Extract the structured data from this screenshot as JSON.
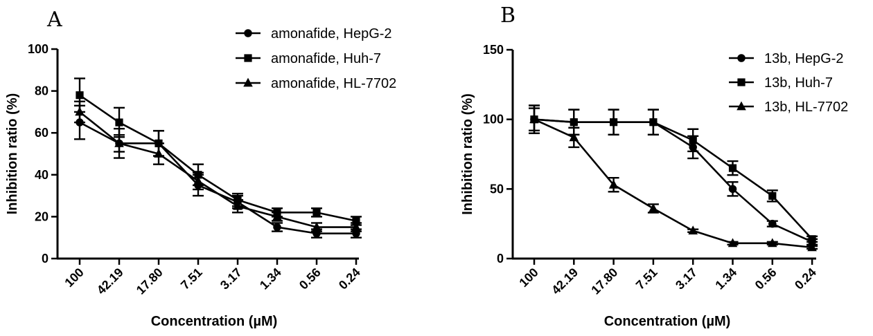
{
  "chart_data": [
    {
      "type": "line",
      "panel_label": "A",
      "xlabel": "Concentration (µM)",
      "ylabel": "Inhibition ratio (%)",
      "categories": [
        "100",
        "42.19",
        "17.80",
        "7.51",
        "3.17",
        "1.34",
        "0.56",
        "0.24"
      ],
      "ylim": [
        0,
        100
      ],
      "yticks": [
        "0",
        "20",
        "40",
        "60",
        "80",
        "100"
      ],
      "grid": false,
      "legend_position": "top-right",
      "series": [
        {
          "name": "amonafide, HepG-2",
          "marker": "circle",
          "values": [
            65,
            55,
            55,
            35,
            27,
            15,
            12,
            12
          ],
          "errors": [
            8,
            7,
            6,
            5,
            3,
            2,
            2,
            2
          ]
        },
        {
          "name": "amonafide, Huh-7",
          "marker": "square",
          "values": [
            78,
            65,
            55,
            40,
            28,
            22,
            22,
            18
          ],
          "errors": [
            8,
            7,
            6,
            5,
            3,
            2,
            2,
            2
          ]
        },
        {
          "name": "amonafide, HL-7702",
          "marker": "triangle",
          "values": [
            70,
            55,
            50,
            37,
            25,
            20,
            15,
            15
          ],
          "errors": [
            5,
            4,
            5,
            4,
            3,
            2,
            2,
            2
          ]
        }
      ]
    },
    {
      "type": "line",
      "panel_label": "B",
      "xlabel": "Concentration (µM)",
      "ylabel": "Inhibition ratio (%)",
      "categories": [
        "100",
        "42.19",
        "17.80",
        "7.51",
        "3.17",
        "1.34",
        "0.56",
        "0.24"
      ],
      "ylim": [
        0,
        150
      ],
      "yticks": [
        "0",
        "50",
        "100",
        "150"
      ],
      "grid": false,
      "legend_position": "top-right",
      "series": [
        {
          "name": "13b, HepG-2",
          "marker": "circle",
          "values": [
            100,
            98,
            98,
            98,
            80,
            50,
            25,
            12
          ],
          "errors": [
            10,
            9,
            9,
            9,
            8,
            5,
            2,
            2
          ]
        },
        {
          "name": "13b, Huh-7",
          "marker": "square",
          "values": [
            100,
            98,
            98,
            98,
            85,
            65,
            45,
            14
          ],
          "errors": [
            10,
            9,
            9,
            9,
            8,
            5,
            4,
            2
          ]
        },
        {
          "name": "13b, HL-7702",
          "marker": "triangle",
          "values": [
            100,
            87,
            53,
            36,
            20,
            11,
            11,
            8
          ],
          "errors": [
            8,
            7,
            5,
            3,
            1,
            1,
            1,
            1
          ]
        }
      ]
    }
  ]
}
